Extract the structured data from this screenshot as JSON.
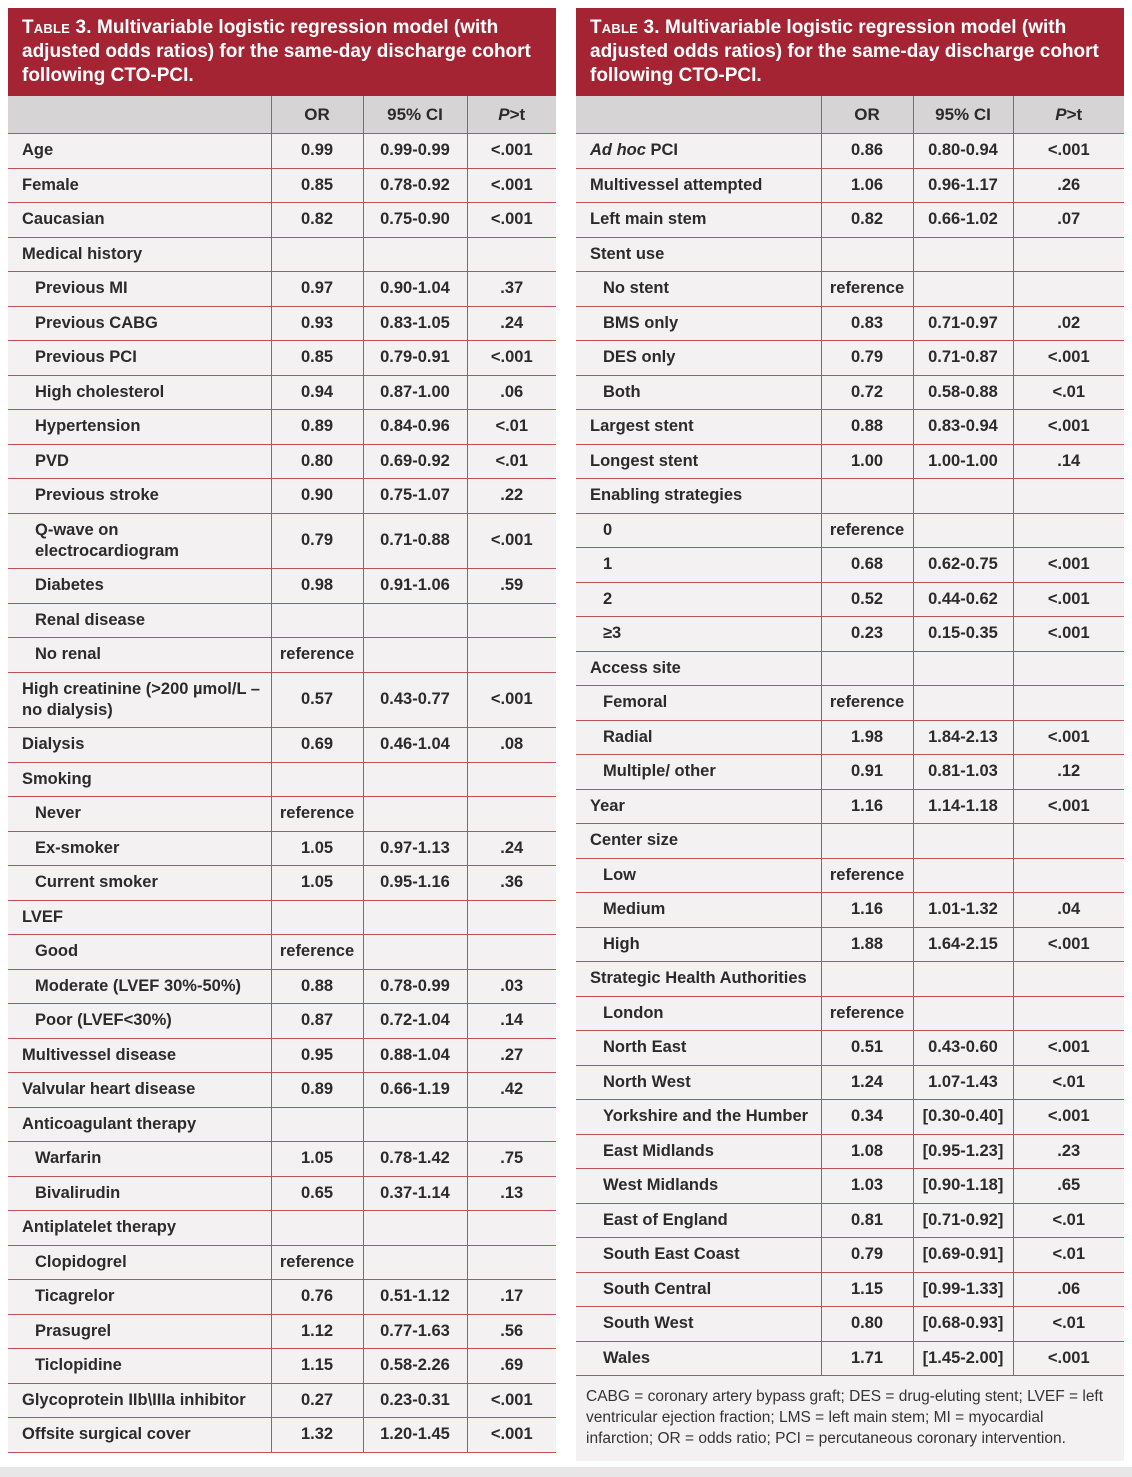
{
  "colors": {
    "banner_red": "#a52434",
    "grid_line_red": "#c05058",
    "column_header_gray": "#d7d4d5",
    "row_background": "#f4f1f2",
    "title_text": "#ffffff"
  },
  "tables": [
    {
      "title_prefix": "Table 3.",
      "title_rest": " Multivariable logistic regression model (with adjusted odds ratios) for the same-day discharge cohort following CTO-PCI.",
      "columns": {
        "label": "",
        "or": "OR",
        "ci": "95% CI",
        "p_italic": "P",
        "p_rest": ">t"
      },
      "rows": [
        {
          "label": "Age",
          "or": "0.99",
          "ci": "0.99-0.99",
          "p": "<.001",
          "indent": 0
        },
        {
          "label": "Female",
          "or": "0.85",
          "ci": "0.78-0.92",
          "p": "<.001",
          "indent": 0
        },
        {
          "label": "Caucasian",
          "or": "0.82",
          "ci": "0.75-0.90",
          "p": "<.001",
          "indent": 0
        },
        {
          "label": "Medical history",
          "or": "",
          "ci": "",
          "p": "",
          "indent": 0
        },
        {
          "label": "Previous MI",
          "or": "0.97",
          "ci": "0.90-1.04",
          "p": ".37",
          "indent": 1
        },
        {
          "label": "Previous CABG",
          "or": "0.93",
          "ci": "0.83-1.05",
          "p": ".24",
          "indent": 1
        },
        {
          "label": "Previous PCI",
          "or": "0.85",
          "ci": "0.79-0.91",
          "p": "<.001",
          "indent": 1
        },
        {
          "label": "High cholesterol",
          "or": "0.94",
          "ci": "0.87-1.00",
          "p": ".06",
          "indent": 1
        },
        {
          "label": "Hypertension",
          "or": "0.89",
          "ci": "0.84-0.96",
          "p": "<.01",
          "indent": 1
        },
        {
          "label": "PVD",
          "or": "0.80",
          "ci": "0.69-0.92",
          "p": "<.01",
          "indent": 1
        },
        {
          "label": "Previous stroke",
          "or": "0.90",
          "ci": "0.75-1.07",
          "p": ".22",
          "indent": 1
        },
        {
          "label": "Q-wave on electrocardiogram",
          "or": "0.79",
          "ci": "0.71-0.88",
          "p": "<.001",
          "indent": 1
        },
        {
          "label": "Diabetes",
          "or": "0.98",
          "ci": "0.91-1.06",
          "p": ".59",
          "indent": 1
        },
        {
          "label": "Renal disease",
          "or": "",
          "ci": "",
          "p": "",
          "indent": 1
        },
        {
          "label": "No renal",
          "or": "reference",
          "ci": "",
          "p": "",
          "indent": 1
        },
        {
          "label": "High creatinine (>200 µmol/L – no dialysis)",
          "or": "0.57",
          "ci": "0.43-0.77",
          "p": "<.001",
          "indent": 0
        },
        {
          "label": "Dialysis",
          "or": "0.69",
          "ci": "0.46-1.04",
          "p": ".08",
          "indent": 0
        },
        {
          "label": "Smoking",
          "or": "",
          "ci": "",
          "p": "",
          "indent": 0
        },
        {
          "label": "Never",
          "or": "reference",
          "ci": "",
          "p": "",
          "indent": 1
        },
        {
          "label": "Ex-smoker",
          "or": "1.05",
          "ci": "0.97-1.13",
          "p": ".24",
          "indent": 1
        },
        {
          "label": "Current smoker",
          "or": "1.05",
          "ci": "0.95-1.16",
          "p": ".36",
          "indent": 1
        },
        {
          "label": "LVEF",
          "or": "",
          "ci": "",
          "p": "",
          "indent": 0
        },
        {
          "label": "Good",
          "or": "reference",
          "ci": "",
          "p": "",
          "indent": 1
        },
        {
          "label": "Moderate (LVEF 30%-50%)",
          "or": "0.88",
          "ci": "0.78-0.99",
          "p": ".03",
          "indent": 1
        },
        {
          "label": "Poor (LVEF<30%)",
          "or": "0.87",
          "ci": "0.72-1.04",
          "p": ".14",
          "indent": 1
        },
        {
          "label": "Multivessel disease",
          "or": "0.95",
          "ci": "0.88-1.04",
          "p": ".27",
          "indent": 0
        },
        {
          "label": "Valvular heart disease",
          "or": "0.89",
          "ci": "0.66-1.19",
          "p": ".42",
          "indent": 0
        },
        {
          "label": "Anticoagulant therapy",
          "or": "",
          "ci": "",
          "p": "",
          "indent": 0
        },
        {
          "label": "Warfarin",
          "or": "1.05",
          "ci": "0.78-1.42",
          "p": ".75",
          "indent": 1
        },
        {
          "label": "Bivalirudin",
          "or": "0.65",
          "ci": "0.37-1.14",
          "p": ".13",
          "indent": 1
        },
        {
          "label": "Antiplatelet therapy",
          "or": "",
          "ci": "",
          "p": "",
          "indent": 0
        },
        {
          "label": "Clopidogrel",
          "or": "reference",
          "ci": "",
          "p": "",
          "indent": 1
        },
        {
          "label": "Ticagrelor",
          "or": "0.76",
          "ci": "0.51-1.12",
          "p": ".17",
          "indent": 1
        },
        {
          "label": "Prasugrel",
          "or": "1.12",
          "ci": "0.77-1.63",
          "p": ".56",
          "indent": 1
        },
        {
          "label": "Ticlopidine",
          "or": "1.15",
          "ci": "0.58-2.26",
          "p": ".69",
          "indent": 1
        },
        {
          "label": "Glycoprotein IIb\\IIIa inhibitor",
          "or": "0.27",
          "ci": "0.23-0.31",
          "p": "<.001",
          "indent": 0
        },
        {
          "label": "Offsite surgical cover",
          "or": "1.32",
          "ci": "1.20-1.45",
          "p": "<.001",
          "indent": 0
        }
      ],
      "footnote": ""
    },
    {
      "title_prefix": "Table 3.",
      "title_rest": " Multivariable logistic regression model (with adjusted odds ratios) for the same-day discharge cohort following CTO-PCI.",
      "columns": {
        "label": "",
        "or": "OR",
        "ci": "95% CI",
        "p_italic": "P",
        "p_rest": ">t"
      },
      "rows": [
        {
          "label_italic": "Ad hoc",
          "label": " PCI",
          "or": "0.86",
          "ci": "0.80-0.94",
          "p": "<.001",
          "indent": 0
        },
        {
          "label": "Multivessel attempted",
          "or": "1.06",
          "ci": "0.96-1.17",
          "p": ".26",
          "indent": 0
        },
        {
          "label": "Left main stem",
          "or": "0.82",
          "ci": "0.66-1.02",
          "p": ".07",
          "indent": 0
        },
        {
          "label": "Stent use",
          "or": "",
          "ci": "",
          "p": "",
          "indent": 0
        },
        {
          "label": "No stent",
          "or": "reference",
          "ci": "",
          "p": "",
          "indent": 1
        },
        {
          "label": "BMS only",
          "or": "0.83",
          "ci": "0.71-0.97",
          "p": ".02",
          "indent": 1
        },
        {
          "label": "DES only",
          "or": "0.79",
          "ci": "0.71-0.87",
          "p": "<.001",
          "indent": 1
        },
        {
          "label": "Both",
          "or": "0.72",
          "ci": "0.58-0.88",
          "p": "<.01",
          "indent": 1
        },
        {
          "label": "Largest stent",
          "or": "0.88",
          "ci": "0.83-0.94",
          "p": "<.001",
          "indent": 0
        },
        {
          "label": "Longest stent",
          "or": "1.00",
          "ci": "1.00-1.00",
          "p": ".14",
          "indent": 0
        },
        {
          "label": "Enabling strategies",
          "or": "",
          "ci": "",
          "p": "",
          "indent": 0
        },
        {
          "label": "0",
          "or": "reference",
          "ci": "",
          "p": "",
          "indent": 1
        },
        {
          "label": "1",
          "or": "0.68",
          "ci": "0.62-0.75",
          "p": "<.001",
          "indent": 1
        },
        {
          "label": "2",
          "or": "0.52",
          "ci": "0.44-0.62",
          "p": "<.001",
          "indent": 1
        },
        {
          "label": "≥3",
          "or": "0.23",
          "ci": "0.15-0.35",
          "p": "<.001",
          "indent": 1
        },
        {
          "label": "Access site",
          "or": "",
          "ci": "",
          "p": "",
          "indent": 0
        },
        {
          "label": "Femoral",
          "or": "reference",
          "ci": "",
          "p": "",
          "indent": 1
        },
        {
          "label": "Radial",
          "or": "1.98",
          "ci": "1.84-2.13",
          "p": "<.001",
          "indent": 1
        },
        {
          "label": "Multiple/ other",
          "or": "0.91",
          "ci": "0.81-1.03",
          "p": ".12",
          "indent": 1
        },
        {
          "label": "Year",
          "or": "1.16",
          "ci": "1.14-1.18",
          "p": "<.001",
          "indent": 0
        },
        {
          "label": "Center size",
          "or": "",
          "ci": "",
          "p": "",
          "indent": 0
        },
        {
          "label": "Low",
          "or": "reference",
          "ci": "",
          "p": "",
          "indent": 1
        },
        {
          "label": "Medium",
          "or": "1.16",
          "ci": "1.01-1.32",
          "p": ".04",
          "indent": 1
        },
        {
          "label": "High",
          "or": "1.88",
          "ci": "1.64-2.15",
          "p": "<.001",
          "indent": 1
        },
        {
          "label": "Strategic Health Authorities",
          "or": "",
          "ci": "",
          "p": "",
          "indent": 0
        },
        {
          "label": "London",
          "or": "reference",
          "ci": "",
          "p": "",
          "indent": 1
        },
        {
          "label": "North East",
          "or": "0.51",
          "ci": "0.43-0.60",
          "p": "<.001",
          "indent": 1
        },
        {
          "label": "North West",
          "or": "1.24",
          "ci": "1.07-1.43",
          "p": "<.01",
          "indent": 1
        },
        {
          "label": "Yorkshire and the Humber",
          "or": "0.34",
          "ci": "[0.30-0.40]",
          "p": "<.001",
          "indent": 1
        },
        {
          "label": "East Midlands",
          "or": "1.08",
          "ci": "[0.95-1.23]",
          "p": ".23",
          "indent": 1
        },
        {
          "label": "West Midlands",
          "or": "1.03",
          "ci": "[0.90-1.18]",
          "p": ".65",
          "indent": 1
        },
        {
          "label": "East of England",
          "or": "0.81",
          "ci": "[0.71-0.92]",
          "p": "<.01",
          "indent": 1
        },
        {
          "label": "South East Coast",
          "or": "0.79",
          "ci": "[0.69-0.91]",
          "p": "<.01",
          "indent": 1
        },
        {
          "label": "South Central",
          "or": "1.15",
          "ci": "[0.99-1.33]",
          "p": ".06",
          "indent": 1
        },
        {
          "label": "South West",
          "or": "0.80",
          "ci": "[0.68-0.93]",
          "p": "<.01",
          "indent": 1
        },
        {
          "label": "Wales",
          "or": "1.71",
          "ci": "[1.45-2.00]",
          "p": "<.001",
          "indent": 1
        }
      ],
      "footnote": "CABG = coronary artery bypass graft; DES = drug-eluting stent; LVEF = left ventricular ejection fraction; LMS = left main stem; MI = myocardial infarction; OR = odds ratio; PCI = percutaneous coronary intervention."
    }
  ]
}
